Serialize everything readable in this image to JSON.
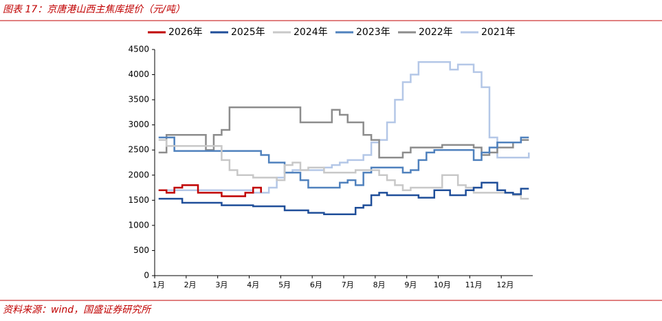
{
  "header": {
    "title": "图表 17：京唐港山西主焦库提价（元/吨）"
  },
  "chart_data": {
    "type": "line",
    "categories": [
      "1月",
      null,
      null,
      null,
      "2月",
      null,
      null,
      null,
      "3月",
      null,
      null,
      null,
      "4月",
      null,
      null,
      null,
      "5月",
      null,
      null,
      null,
      "6月",
      null,
      null,
      null,
      "7月",
      null,
      null,
      null,
      "8月",
      null,
      null,
      null,
      "9月",
      null,
      null,
      null,
      "10月",
      null,
      null,
      null,
      "11月",
      null,
      null,
      null,
      "12月",
      null,
      null,
      null
    ],
    "ylim": [
      0,
      4500
    ],
    "yticks": [
      0,
      500,
      1000,
      1500,
      2000,
      2500,
      3000,
      3500,
      4000,
      4500
    ],
    "grid": false,
    "legend": "top",
    "series": [
      {
        "name": "2026年",
        "color": "#c00000",
        "values": [
          1700,
          1650,
          1750,
          1800,
          1800,
          1650,
          1650,
          1650,
          1580,
          1580,
          1580,
          1650,
          1750,
          1650,
          null,
          null,
          null,
          null,
          null,
          null,
          null,
          null,
          null,
          null,
          null,
          null,
          null,
          null,
          null,
          null,
          null,
          null,
          null,
          null,
          null,
          null,
          null,
          null,
          null,
          null,
          null,
          null,
          null,
          null,
          null,
          null,
          null,
          null
        ]
      },
      {
        "name": "2025年",
        "color": "#1f4e99",
        "values": [
          1530,
          1530,
          1530,
          1450,
          1450,
          1450,
          1450,
          1450,
          1400,
          1400,
          1400,
          1400,
          1380,
          1380,
          1380,
          1380,
          1300,
          1300,
          1300,
          1250,
          1250,
          1220,
          1220,
          1220,
          1220,
          1350,
          1400,
          1600,
          1650,
          1600,
          1600,
          1600,
          1600,
          1550,
          1550,
          1700,
          1700,
          1600,
          1600,
          1700,
          1750,
          1850,
          1850,
          1700,
          1650,
          1620,
          1730,
          1730
        ]
      },
      {
        "name": "2024年",
        "color": "#c8c8c8",
        "values": [
          2700,
          2580,
          2580,
          2580,
          2580,
          2580,
          2580,
          2580,
          2300,
          2100,
          2000,
          2000,
          1950,
          1950,
          1950,
          1900,
          2200,
          2250,
          2100,
          2150,
          2150,
          2050,
          2050,
          2050,
          2050,
          2100,
          2100,
          2100,
          2000,
          1900,
          1800,
          1700,
          1750,
          1750,
          1750,
          1750,
          2000,
          2000,
          1800,
          1750,
          1650,
          1650,
          1650,
          1650,
          1650,
          1600,
          1530,
          1530
        ]
      },
      {
        "name": "2023年",
        "color": "#4f81bd",
        "values": [
          2750,
          2750,
          2480,
          2480,
          2480,
          2480,
          2480,
          2480,
          2480,
          2480,
          2480,
          2480,
          2480,
          2400,
          2250,
          2250,
          2050,
          2050,
          1900,
          1750,
          1750,
          1750,
          1750,
          1850,
          1900,
          1800,
          2050,
          2150,
          2150,
          2150,
          2150,
          2050,
          2100,
          2300,
          2450,
          2500,
          2500,
          2500,
          2500,
          2500,
          2300,
          2450,
          2550,
          2650,
          2650,
          2650,
          2750,
          2750
        ]
      },
      {
        "name": "2022年",
        "color": "#8c8c8c",
        "values": [
          2450,
          2800,
          2800,
          2800,
          2800,
          2800,
          2500,
          2800,
          2900,
          3350,
          3350,
          3350,
          3350,
          3350,
          3350,
          3350,
          3350,
          3350,
          3050,
          3050,
          3050,
          3050,
          3300,
          3200,
          3050,
          3050,
          2800,
          2700,
          2350,
          2350,
          2350,
          2450,
          2550,
          2550,
          2550,
          2550,
          2600,
          2600,
          2600,
          2600,
          2550,
          2400,
          2450,
          2550,
          2550,
          2650,
          2700,
          2700
        ]
      },
      {
        "name": "2021年",
        "color": "#b4c7e7",
        "values": [
          1700,
          1700,
          1700,
          1700,
          1700,
          1700,
          1700,
          1700,
          1700,
          1700,
          1700,
          1700,
          1650,
          1650,
          1750,
          1950,
          2050,
          2100,
          2100,
          2100,
          2100,
          2150,
          2200,
          2250,
          2300,
          2300,
          2400,
          2650,
          2700,
          3050,
          3500,
          3850,
          4000,
          4250,
          4250,
          4250,
          4250,
          4100,
          4200,
          4200,
          4050,
          3750,
          2750,
          2350,
          2350,
          2350,
          2350,
          2450
        ]
      }
    ]
  },
  "footer": {
    "source": "资料来源：wind，国盛证券研究所"
  }
}
